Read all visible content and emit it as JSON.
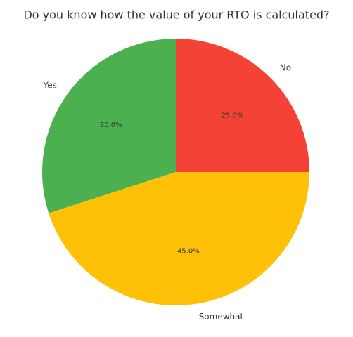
{
  "chart_data": {
    "type": "pie",
    "title": "Do you know how the value of your RTO is calculated?",
    "categories": [
      "No",
      "Yes",
      "Somewhat"
    ],
    "values": [
      25,
      30,
      45
    ],
    "value_labels": [
      "25.0%",
      "30.0%",
      "45.0%"
    ],
    "colors": [
      "#f44336",
      "#4caf50",
      "#ffc107"
    ]
  }
}
